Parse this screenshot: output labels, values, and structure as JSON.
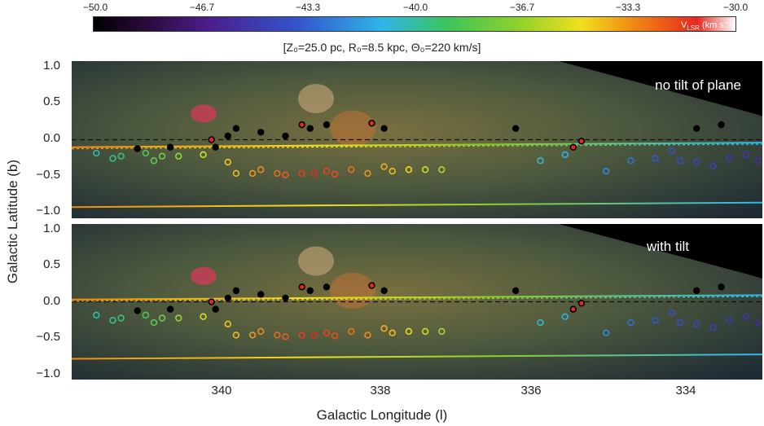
{
  "colorbar": {
    "ticks": [
      "−50.0",
      "−46.7",
      "−43.3",
      "−40.0",
      "−36.7",
      "−33.3",
      "−30.0"
    ],
    "label": "V",
    "label_sub": "LSR",
    "label_unit": " (km s⁻¹)"
  },
  "params": "[Z₀=25.0 pc, R₀=8.5 kpc, Θ₀=220 km/s]",
  "panels": [
    {
      "title": "no tilt of plane"
    },
    {
      "title": "with tilt"
    }
  ],
  "axes": {
    "xlabel": "Galactic Longitude (l)",
    "ylabel": "Galactic Latitude (b)",
    "xticks": [
      "340",
      "338",
      "336",
      "334"
    ],
    "yticks": [
      "1.0",
      "0.5",
      "0.0",
      "−0.5",
      "−1.0"
    ]
  },
  "chart_data": {
    "type": "scatter",
    "x_range": [
      341.5,
      333.1
    ],
    "y_range": [
      -1.05,
      1.05
    ],
    "colorbar_range": [
      -50.0,
      -30.0
    ],
    "colors": {
      "near": "#000000",
      "far": "#ffffff",
      "red": "#e8281e"
    },
    "series": [
      {
        "points": [
          [
            341.2,
            -0.18
          ],
          [
            341.0,
            -0.25
          ],
          [
            340.9,
            -0.22
          ],
          [
            340.7,
            -0.12
          ],
          [
            340.6,
            -0.18
          ],
          [
            340.5,
            -0.28
          ],
          [
            340.4,
            -0.22
          ],
          [
            340.3,
            -0.1
          ],
          [
            340.2,
            -0.22
          ],
          [
            339.9,
            -0.2
          ],
          [
            339.75,
            -0.1
          ],
          [
            339.6,
            -0.3
          ],
          [
            339.5,
            -0.45
          ],
          [
            339.3,
            -0.45
          ],
          [
            339.2,
            -0.4
          ],
          [
            339.0,
            -0.45
          ],
          [
            338.9,
            -0.47
          ],
          [
            338.7,
            -0.45
          ],
          [
            338.55,
            -0.45
          ],
          [
            338.4,
            -0.42
          ],
          [
            338.3,
            -0.46
          ],
          [
            338.1,
            -0.4
          ],
          [
            337.9,
            -0.45
          ],
          [
            337.7,
            -0.36
          ],
          [
            337.6,
            -0.42
          ],
          [
            337.4,
            -0.4
          ],
          [
            337.2,
            -0.4
          ],
          [
            337.0,
            -0.4
          ],
          [
            337.85,
            0.22
          ],
          [
            337.7,
            0.15
          ],
          [
            338.4,
            0.2
          ],
          [
            338.6,
            0.15
          ],
          [
            338.7,
            0.2
          ],
          [
            338.9,
            0.05
          ],
          [
            339.2,
            0.1
          ],
          [
            339.5,
            0.15
          ],
          [
            339.8,
            0.0
          ],
          [
            339.6,
            0.05
          ],
          [
            335.8,
            -0.28
          ],
          [
            335.5,
            -0.2
          ],
          [
            335.3,
            -0.02
          ],
          [
            335.0,
            -0.42
          ],
          [
            334.7,
            -0.28
          ],
          [
            334.4,
            -0.25
          ],
          [
            334.1,
            -0.28
          ],
          [
            333.9,
            -0.3
          ],
          [
            333.7,
            -0.35
          ],
          [
            333.6,
            0.2
          ],
          [
            333.5,
            -0.25
          ],
          [
            333.3,
            -0.2
          ],
          [
            333.15,
            -0.28
          ],
          [
            336.1,
            0.15
          ],
          [
            335.4,
            -0.1
          ],
          [
            334.2,
            -0.15
          ],
          [
            333.9,
            0.15
          ]
        ]
      }
    ],
    "tilt_lines": {
      "no_tilt": {
        "b0": -0.9,
        "b1": -0.84
      },
      "with_tilt": {
        "b0": -0.77,
        "b1": -0.71
      }
    }
  }
}
